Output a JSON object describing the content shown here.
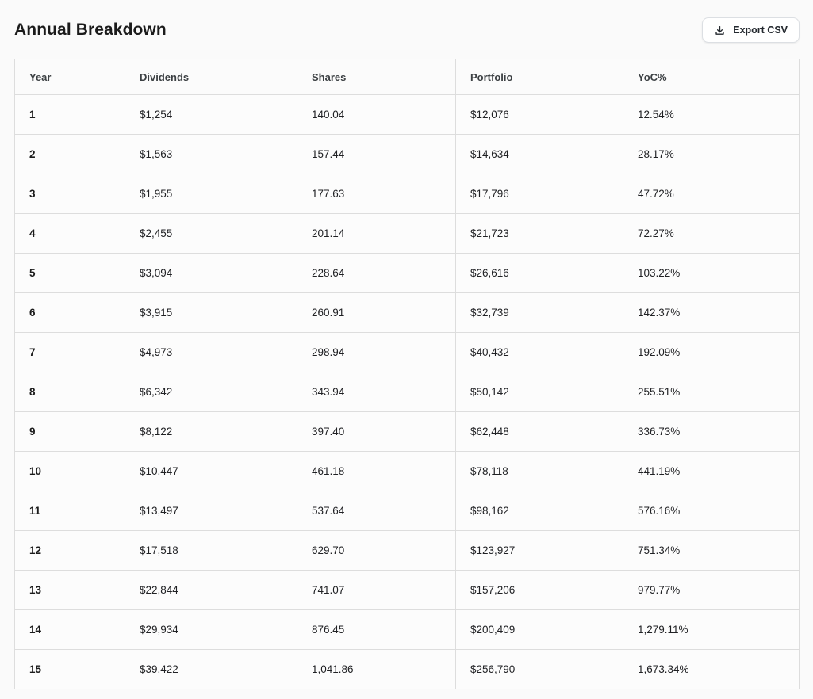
{
  "page": {
    "title": "Annual Breakdown"
  },
  "toolbar": {
    "export_label": "Export CSV",
    "export_icon": "download-icon"
  },
  "colors": {
    "page_background": "#fafafa",
    "table_background": "#fcfcfc",
    "border": "#dddddd",
    "header_text": "#3c4043",
    "body_text": "#202124",
    "button_border": "#dcdfe3"
  },
  "table": {
    "column_keys": [
      "year",
      "dividends",
      "shares",
      "portfolio",
      "yoc"
    ],
    "columns": [
      "Year",
      "Dividends",
      "Shares",
      "Portfolio",
      "YoC%"
    ],
    "rows": [
      [
        "1",
        "$1,254",
        "140.04",
        "$12,076",
        "12.54%"
      ],
      [
        "2",
        "$1,563",
        "157.44",
        "$14,634",
        "28.17%"
      ],
      [
        "3",
        "$1,955",
        "177.63",
        "$17,796",
        "47.72%"
      ],
      [
        "4",
        "$2,455",
        "201.14",
        "$21,723",
        "72.27%"
      ],
      [
        "5",
        "$3,094",
        "228.64",
        "$26,616",
        "103.22%"
      ],
      [
        "6",
        "$3,915",
        "260.91",
        "$32,739",
        "142.37%"
      ],
      [
        "7",
        "$4,973",
        "298.94",
        "$40,432",
        "192.09%"
      ],
      [
        "8",
        "$6,342",
        "343.94",
        "$50,142",
        "255.51%"
      ],
      [
        "9",
        "$8,122",
        "397.40",
        "$62,448",
        "336.73%"
      ],
      [
        "10",
        "$10,447",
        "461.18",
        "$78,118",
        "441.19%"
      ],
      [
        "11",
        "$13,497",
        "537.64",
        "$98,162",
        "576.16%"
      ],
      [
        "12",
        "$17,518",
        "629.70",
        "$123,927",
        "751.34%"
      ],
      [
        "13",
        "$22,844",
        "741.07",
        "$157,206",
        "979.77%"
      ],
      [
        "14",
        "$29,934",
        "876.45",
        "$200,409",
        "1,279.11%"
      ],
      [
        "15",
        "$39,422",
        "1,041.86",
        "$256,790",
        "1,673.34%"
      ]
    ]
  }
}
